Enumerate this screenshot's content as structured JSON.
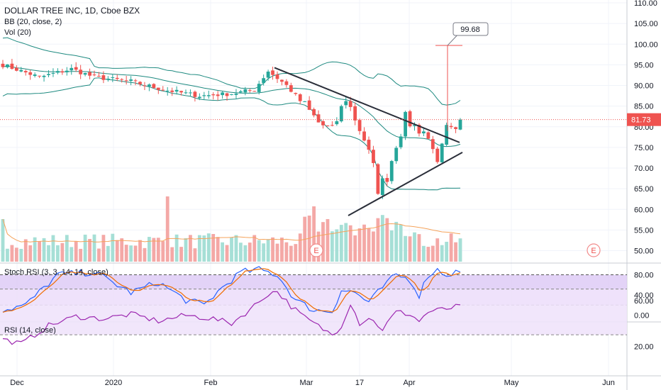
{
  "header": {
    "symbol_title": "DOLLAR TREE INC, 1D, Cboe BZX",
    "bb_label": "BB (20, close, 2)",
    "vol_label": "Vol (20)",
    "stoch_label": "Stoch RSI (3, 3, 14, 14, close)",
    "rsi_label": "RSI (14, close)"
  },
  "chart_data": [
    {
      "type": "candlestick",
      "title": "DOLLAR TREE INC, 1D, Cboe BZX",
      "y_ticks": [
        "110.00",
        "105.00",
        "100.00",
        "95.00",
        "90.00",
        "85.00",
        "80.00",
        "75.00",
        "70.00",
        "65.00",
        "60.00",
        "55.00",
        "50.00"
      ],
      "ylim": [
        48,
        111
      ],
      "x_ticks": [
        "Dec",
        "2020",
        "Feb",
        "Mar",
        "17",
        "Apr",
        "May",
        "Jun"
      ],
      "last_price": "81.73",
      "spike_high_label": "99.68",
      "earnings_markers": [
        "E",
        "E"
      ],
      "indicators": [
        "Bollinger Bands",
        "Volume"
      ],
      "colors": {
        "up": "#26a69a",
        "down": "#ef5350",
        "bb": "#1e8a80",
        "trendline": "#2a2e39",
        "volume_ma": "#f5a35b",
        "price_line": "#ef5350"
      }
    },
    {
      "type": "line",
      "title": "Stoch RSI (3, 3, 14, 14, close)",
      "y_ticks": [
        "80.00",
        "40.00",
        "0.00"
      ],
      "bands": [
        20,
        80
      ],
      "series": [
        {
          "color": "#2962ff"
        },
        {
          "color": "#ef6c00"
        }
      ]
    },
    {
      "type": "line",
      "title": "RSI (14, close)",
      "y_ticks": [
        "60.00",
        "20.00"
      ],
      "bands": [
        30,
        70
      ],
      "series": [
        {
          "color": "#9c27b0"
        }
      ]
    }
  ]
}
